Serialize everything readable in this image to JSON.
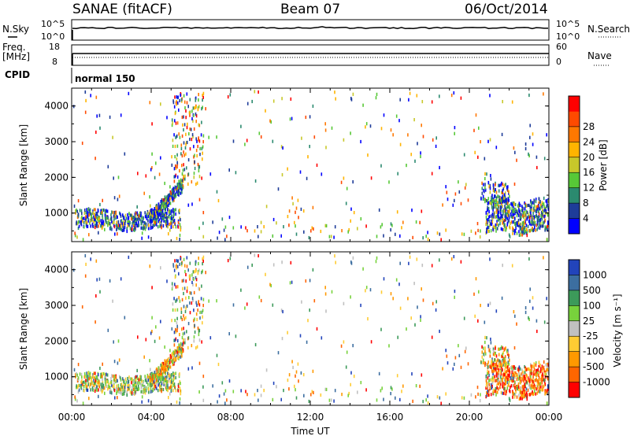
{
  "header": {
    "radar": "SANAE (fitACF)",
    "beam": "Beam 07",
    "date": "06/Oct/2014"
  },
  "noise_panel": {
    "left_label": "N.Sky",
    "right_label": "N.Search",
    "left_ticks": [
      "10^5",
      "10^0"
    ],
    "right_ticks": [
      "10^5",
      "10^0"
    ]
  },
  "freq_panel": {
    "left_label_1": "Freq.",
    "left_label_2": "[MHz]",
    "right_label": "Nave",
    "left_ticks": [
      "18",
      "8"
    ],
    "right_ticks": [
      "60",
      "0"
    ]
  },
  "cpid": {
    "label": "CPID",
    "mode": "normal 150"
  },
  "x_axis": {
    "label": "Time UT",
    "ticks": [
      "00:00",
      "04:00",
      "08:00",
      "12:00",
      "16:00",
      "20:00",
      "00:00"
    ]
  },
  "chart_data": [
    {
      "type": "heatmap",
      "parameter": "power",
      "xlabel": "Time UT",
      "ylabel": "Slant Range [km]",
      "xlim_hours": [
        0,
        24
      ],
      "ylim": [
        200,
        4500
      ],
      "y_ticks": [
        "1000",
        "2000",
        "3000",
        "4000"
      ],
      "colorbar": {
        "label": "Power [dB]",
        "ticks": [
          "4",
          "8",
          "12",
          "16",
          "20",
          "24",
          "28"
        ],
        "colors": [
          "#0000ff",
          "#1e3c99",
          "#2b8a6f",
          "#57c837",
          "#c8c82a",
          "#ffb400",
          "#ff7800",
          "#ff4a00",
          "#ff0000"
        ]
      },
      "clusters": [
        {
          "t_start": 0.1,
          "t_end": 5.4,
          "range_min": 650,
          "range_max": 1350,
          "dominant": "blue-green"
        },
        {
          "t_start": 4.0,
          "t_end": 5.6,
          "range_min": 900,
          "range_max": 1900,
          "dominant": "blue"
        },
        {
          "t_start": 5.0,
          "t_end": 6.5,
          "range_min": 1800,
          "range_max": 4400,
          "dominant": "mixed"
        },
        {
          "t_start": 20.8,
          "t_end": 24.0,
          "range_min": 400,
          "range_max": 1600,
          "dominant": "blue-green"
        }
      ]
    },
    {
      "type": "heatmap",
      "parameter": "velocity",
      "xlabel": "Time UT",
      "ylabel": "Slant Range [km]",
      "xlim_hours": [
        0,
        24
      ],
      "ylim": [
        200,
        4500
      ],
      "y_ticks": [
        "1000",
        "2000",
        "3000",
        "4000"
      ],
      "colorbar": {
        "label": "Velocity [m s⁻¹]",
        "ticks": [
          "1000",
          "500",
          "100",
          "25",
          "-25",
          "-100",
          "-500",
          "-1000"
        ],
        "colors": [
          "#2244bb",
          "#3c6ea0",
          "#3c9a5a",
          "#78d23c",
          "#c0c0c0",
          "#ffcc33",
          "#ff9900",
          "#ff6600",
          "#ff0000"
        ]
      },
      "clusters": [
        {
          "t_start": 0.1,
          "t_end": 5.4,
          "range_min": 650,
          "range_max": 1350,
          "dominant": "green-yellow"
        },
        {
          "t_start": 4.0,
          "t_end": 5.6,
          "range_min": 900,
          "range_max": 1900,
          "dominant": "orange"
        },
        {
          "t_start": 5.0,
          "t_end": 6.5,
          "range_min": 1800,
          "range_max": 4400,
          "dominant": "mixed"
        },
        {
          "t_start": 20.8,
          "t_end": 24.0,
          "range_min": 400,
          "range_max": 1600,
          "dominant": "red-orange"
        }
      ]
    }
  ]
}
